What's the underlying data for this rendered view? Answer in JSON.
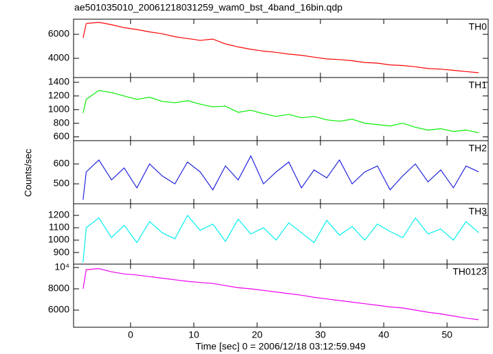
{
  "chart_data": {
    "type": "line",
    "title": "ae501035010_20061218031259_wam0_bst_4band_16bin.qdp",
    "xlabel": "Time [sec] 0 = 2006/12/18 03:12:59.949",
    "ylabel": "Counts/sec",
    "xlim": [
      -9,
      56.5
    ],
    "xticks": [
      0,
      10,
      20,
      30,
      40,
      50
    ],
    "x": [
      -7.5,
      -7,
      -5,
      -3,
      -1,
      1,
      3,
      5,
      7,
      9,
      11,
      13,
      15,
      17,
      19,
      21,
      23,
      25,
      27,
      29,
      31,
      33,
      35,
      37,
      39,
      41,
      43,
      45,
      47,
      49,
      51,
      53,
      55
    ],
    "series": [
      {
        "name": "TH0",
        "color": "#ff0000",
        "ylim": [
          2400,
          7260
        ],
        "yticks": [
          4000,
          6000
        ],
        "values": [
          5700,
          6900,
          7000,
          6800,
          6550,
          6400,
          6200,
          6050,
          5800,
          5650,
          5500,
          5600,
          5200,
          4950,
          4750,
          4600,
          4500,
          4350,
          4250,
          4100,
          3950,
          3900,
          3800,
          3650,
          3600,
          3450,
          3400,
          3300,
          3150,
          3100,
          3000,
          2900,
          2800
        ]
      },
      {
        "name": "TH1",
        "color": "#00ee00",
        "ylim": [
          545,
          1470
        ],
        "yticks": [
          600,
          800,
          1000,
          1200,
          1400
        ],
        "values": [
          950,
          1150,
          1280,
          1250,
          1200,
          1150,
          1180,
          1120,
          1100,
          1130,
          1080,
          1040,
          1050,
          960,
          990,
          940,
          900,
          930,
          880,
          900,
          850,
          830,
          860,
          800,
          780,
          760,
          800,
          740,
          700,
          720,
          680,
          700,
          660
        ]
      },
      {
        "name": "TH2",
        "color": "#2222dd",
        "ylim": [
          400,
          717
        ],
        "yticks": [
          500,
          600
        ],
        "values": [
          420,
          560,
          620,
          520,
          580,
          480,
          600,
          540,
          500,
          610,
          560,
          470,
          590,
          520,
          640,
          500,
          560,
          610,
          480,
          570,
          530,
          620,
          500,
          560,
          590,
          470,
          540,
          600,
          510,
          570,
          480,
          590,
          560
        ]
      },
      {
        "name": "TH3",
        "color": "#00eeee",
        "ylim": [
          806,
          1294
        ],
        "yticks": [
          900,
          1000,
          1100,
          1200
        ],
        "values": [
          820,
          1100,
          1180,
          1020,
          1120,
          980,
          1150,
          1060,
          1010,
          1200,
          1080,
          1130,
          990,
          1170,
          1050,
          1100,
          1000,
          1140,
          1060,
          980,
          1160,
          1040,
          1110,
          1000,
          1130,
          1070,
          1020,
          1180,
          1050,
          1090,
          1000,
          1150,
          1060
        ]
      },
      {
        "name": "TH0123",
        "color": "#ee00ee",
        "ylim": [
          4390,
          10320
        ],
        "yticks": [
          6000,
          8000,
          {
            "value": 10000,
            "label": "10⁴"
          }
        ],
        "values": [
          8000,
          9800,
          9900,
          9600,
          9400,
          9300,
          9150,
          9000,
          8850,
          8700,
          8600,
          8500,
          8300,
          8100,
          8000,
          7850,
          7700,
          7550,
          7400,
          7200,
          7050,
          6900,
          6750,
          6600,
          6450,
          6300,
          6200,
          6000,
          5800,
          5650,
          5450,
          5250,
          5100
        ]
      }
    ]
  }
}
